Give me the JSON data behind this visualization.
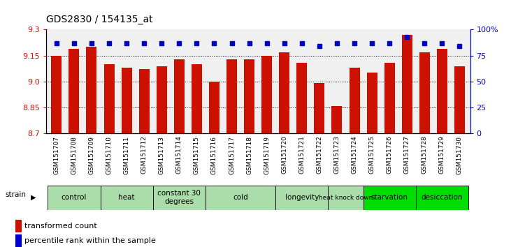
{
  "title": "GDS2830 / 154135_at",
  "samples": [
    "GSM151707",
    "GSM151708",
    "GSM151709",
    "GSM151710",
    "GSM151711",
    "GSM151712",
    "GSM151713",
    "GSM151714",
    "GSM151715",
    "GSM151716",
    "GSM151717",
    "GSM151718",
    "GSM151719",
    "GSM151720",
    "GSM151721",
    "GSM151722",
    "GSM151723",
    "GSM151724",
    "GSM151725",
    "GSM151726",
    "GSM151727",
    "GSM151728",
    "GSM151729",
    "GSM151730"
  ],
  "bar_values": [
    9.15,
    9.19,
    9.2,
    9.1,
    9.08,
    9.07,
    9.09,
    9.13,
    9.1,
    9.0,
    9.13,
    9.13,
    9.15,
    9.17,
    9.11,
    8.99,
    8.86,
    9.08,
    9.05,
    9.11,
    9.27,
    9.17,
    9.19,
    9.09
  ],
  "percentile_values": [
    87,
    87,
    87,
    87,
    87,
    87,
    87,
    87,
    87,
    87,
    87,
    87,
    87,
    87,
    87,
    84,
    87,
    87,
    87,
    87,
    93,
    87,
    87,
    84
  ],
  "groups": [
    {
      "label": "control",
      "start": 0,
      "end": 3,
      "color": "#aaddaa"
    },
    {
      "label": "heat",
      "start": 3,
      "end": 6,
      "color": "#aaddaa"
    },
    {
      "label": "constant 30\ndegrees",
      "start": 6,
      "end": 9,
      "color": "#aaddaa"
    },
    {
      "label": "cold",
      "start": 9,
      "end": 13,
      "color": "#aaddaa"
    },
    {
      "label": "longevity",
      "start": 13,
      "end": 16,
      "color": "#aaddaa"
    },
    {
      "label": "heat knock down",
      "start": 16,
      "end": 18,
      "color": "#aaddaa"
    },
    {
      "label": "starvation",
      "start": 18,
      "end": 21,
      "color": "#00dd00"
    },
    {
      "label": "desiccation",
      "start": 21,
      "end": 24,
      "color": "#00dd00"
    }
  ],
  "bar_color": "#cc1100",
  "percentile_color": "#0000cc",
  "ylim_left": [
    8.7,
    9.3
  ],
  "ylim_right": [
    0,
    100
  ],
  "yticks_left": [
    8.7,
    8.85,
    9.0,
    9.15,
    9.3
  ],
  "yticks_right": [
    0,
    25,
    50,
    75,
    100
  ],
  "background_color": "#ffffff"
}
